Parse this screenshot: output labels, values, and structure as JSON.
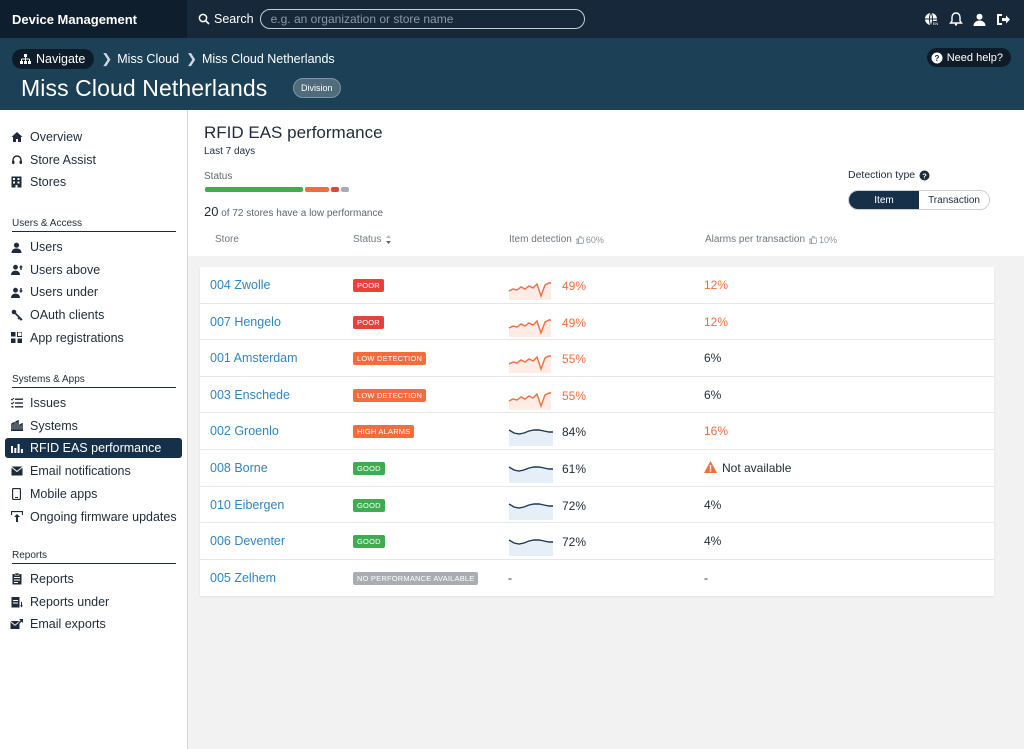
{
  "app": {
    "title": "Device Management"
  },
  "search": {
    "label": "Search",
    "placeholder": "e.g. an organization or store name"
  },
  "breadcrumb": {
    "navigate": "Navigate",
    "items": [
      "Miss Cloud",
      "Miss Cloud Netherlands"
    ]
  },
  "help": "Need help?",
  "header": {
    "title": "Miss Cloud Netherlands",
    "badge": "Division"
  },
  "sidebar": {
    "top": [
      {
        "label": "Overview",
        "icon": "home-icon"
      },
      {
        "label": "Store Assist",
        "icon": "headset-icon"
      },
      {
        "label": "Stores",
        "icon": "building-icon"
      }
    ],
    "sections": [
      {
        "title": "Users & Access",
        "items": [
          {
            "label": "Users",
            "icon": "user-icon"
          },
          {
            "label": "Users above",
            "icon": "user-up-icon"
          },
          {
            "label": "Users under",
            "icon": "user-down-icon"
          },
          {
            "label": "OAuth clients",
            "icon": "key-icon"
          },
          {
            "label": "App registrations",
            "icon": "grid-icon"
          }
        ]
      },
      {
        "title": "Systems & Apps",
        "items": [
          {
            "label": "Issues",
            "icon": "list-icon"
          },
          {
            "label": "Systems",
            "icon": "systems-icon"
          },
          {
            "label": "RFID EAS performance",
            "icon": "chart-icon",
            "active": true
          },
          {
            "label": "Email notifications",
            "icon": "mail-icon"
          },
          {
            "label": "Mobile apps",
            "icon": "phone-icon"
          },
          {
            "label": "Ongoing firmware updates",
            "icon": "upload-icon"
          }
        ]
      },
      {
        "title": "Reports",
        "items": [
          {
            "label": "Reports",
            "icon": "report-icon"
          },
          {
            "label": "Reports under",
            "icon": "report-down-icon"
          },
          {
            "label": "Email exports",
            "icon": "mail-export-icon"
          }
        ]
      }
    ]
  },
  "panel": {
    "title": "RFID EAS performance",
    "period": "Last 7 days",
    "status_label": "Status",
    "low_count": "20",
    "low_text": " of 72 stores have a low performance",
    "detection_label": "Detection type",
    "segments": [
      "Item",
      "Transaction"
    ],
    "columns": {
      "store": "Store",
      "status": "Status",
      "item_detection": "Item detection",
      "item_target": "60%",
      "alarms": "Alarms per transaction",
      "alarms_target": "10%"
    }
  },
  "colors": {
    "poor": "#e8413c",
    "low": "#f36c3d",
    "high": "#f36c3d",
    "good": "#3fac4f",
    "none": "#a9adb1",
    "warn_text": "#f36c3d"
  },
  "rows": [
    {
      "store": "004 Zwolle",
      "status": "POOR",
      "kind": "poor",
      "detection": "49%",
      "alarms": "12%",
      "alarm_warn": true
    },
    {
      "store": "007 Hengelo",
      "status": "POOR",
      "kind": "poor",
      "detection": "49%",
      "alarms": "12%",
      "alarm_warn": true
    },
    {
      "store": "001 Amsterdam",
      "status": "LOW DETECTION",
      "kind": "low",
      "detection": "55%",
      "alarms": "6%",
      "alarm_warn": false
    },
    {
      "store": "003 Enschede",
      "status": "LOW DETECTION",
      "kind": "low",
      "detection": "55%",
      "alarms": "6%",
      "alarm_warn": false
    },
    {
      "store": "002 Groenlo",
      "status": "HIGH ALARMS",
      "kind": "high",
      "detection": "84%",
      "alarms": "16%",
      "alarm_warn": true
    },
    {
      "store": "008 Borne",
      "status": "GOOD",
      "kind": "good",
      "detection": "61%",
      "alarms": "Not available",
      "alarm_warn": false,
      "alarm_na": true
    },
    {
      "store": "010 Eibergen",
      "status": "GOOD",
      "kind": "good",
      "detection": "72%",
      "alarms": "4%",
      "alarm_warn": false
    },
    {
      "store": "006 Deventer",
      "status": "GOOD",
      "kind": "good",
      "detection": "72%",
      "alarms": "4%",
      "alarm_warn": false
    },
    {
      "store": "005 Zelhem",
      "status": "NO PERFORMANCE AVAILABLE",
      "kind": "none",
      "detection": "-",
      "alarms": "-",
      "alarm_warn": false,
      "no_data": true
    }
  ]
}
